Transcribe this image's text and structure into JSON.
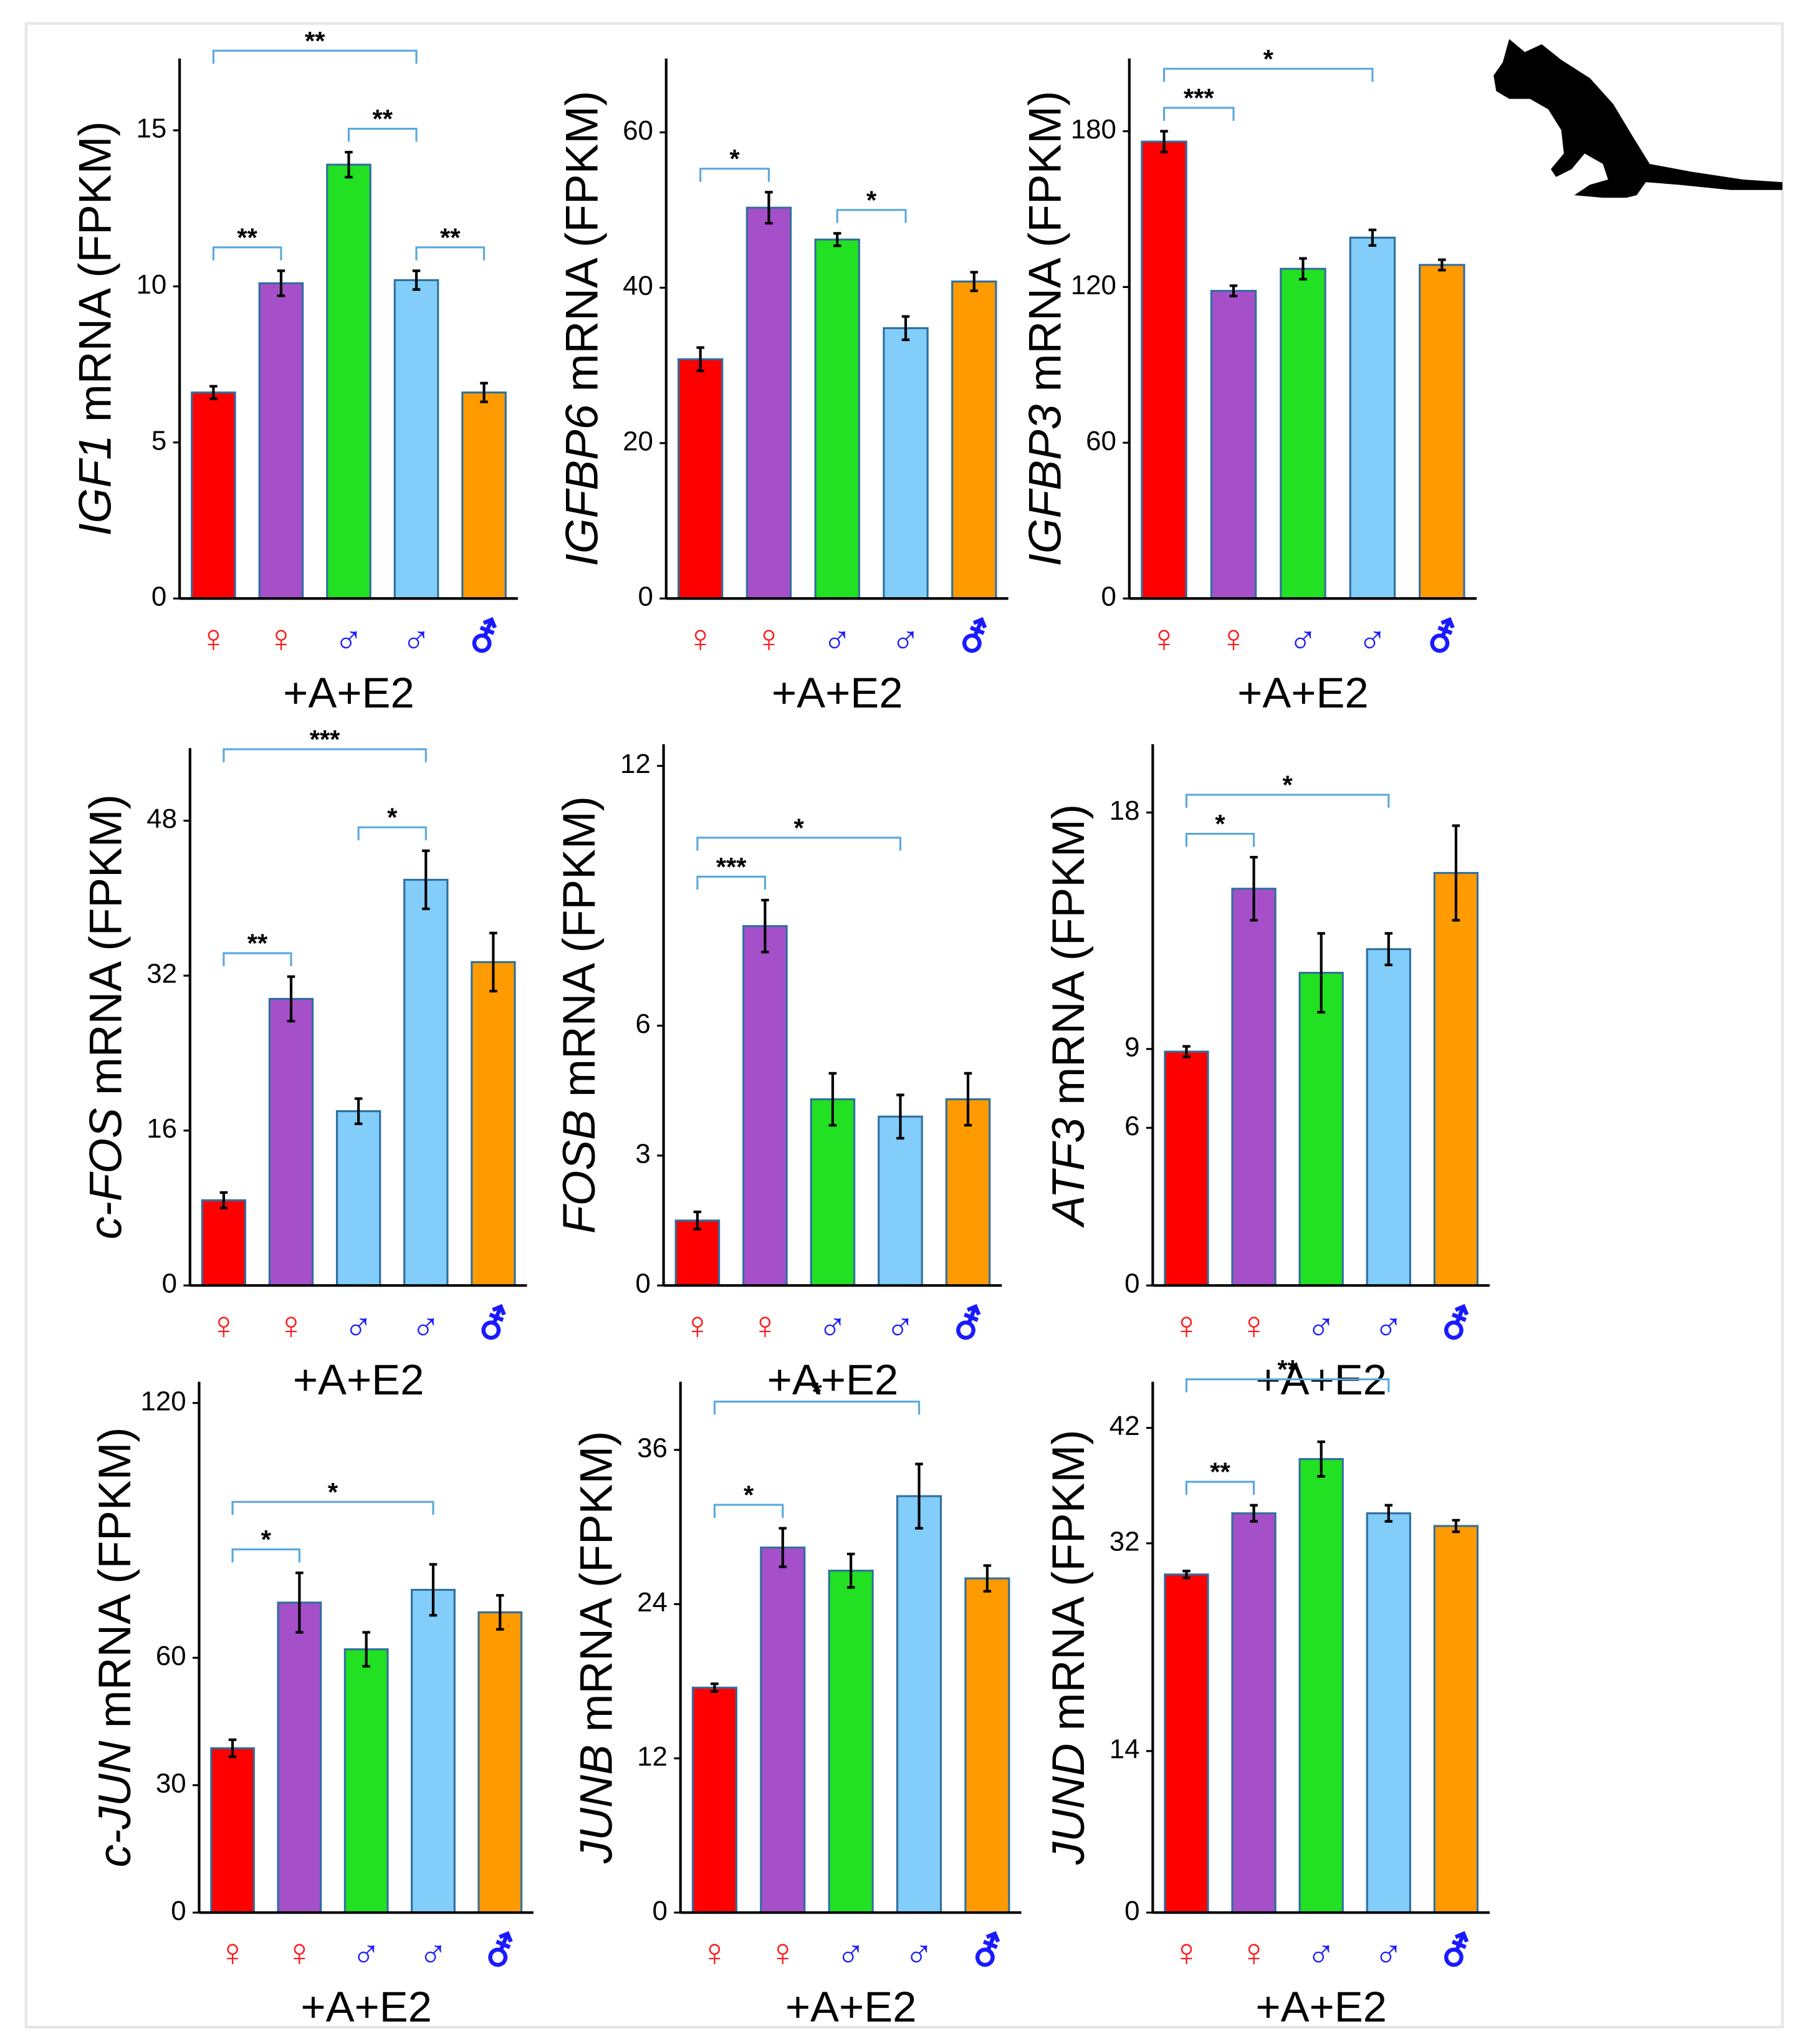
{
  "chart_data": [
    {
      "type": "bar",
      "ylabel_italic": "IGF1",
      "ylabel": "mRNA (FPKM)",
      "xlabel": "+A+E2",
      "categories": [
        "♀",
        "♀",
        "♂",
        "♂",
        "⚦"
      ],
      "category_colors": [
        "#ff1a1a",
        "#ff1a1a",
        "#1a1aff",
        "#1a1aff",
        "#1a1aff"
      ],
      "values": [
        6.6,
        10.1,
        13.9,
        10.2,
        6.6
      ],
      "errors": [
        0.2,
        0.4,
        0.4,
        0.3,
        0.3
      ],
      "colors": [
        "#ff0000",
        "#a550c8",
        "#22e022",
        "#82cdfa",
        "#ff9a00"
      ],
      "ylim": [
        0,
        17.3
      ],
      "yticks": [
        0,
        5,
        10,
        15
      ],
      "annotations": [
        {
          "bars": [
            0,
            1
          ],
          "text": "**"
        },
        {
          "bars": [
            0,
            3
          ],
          "text": "**"
        },
        {
          "bars": [
            2,
            3
          ],
          "text": "**"
        },
        {
          "bars": [
            3,
            4
          ],
          "text": "**"
        }
      ]
    },
    {
      "type": "bar",
      "ylabel_italic": "IGFBP6",
      "ylabel": "mRNA (FPKM)",
      "xlabel": "+A+E2",
      "categories": [
        "♀",
        "♀",
        "♂",
        "♂",
        "⚦"
      ],
      "category_colors": [
        "#ff1a1a",
        "#ff1a1a",
        "#1a1aff",
        "#1a1aff",
        "#1a1aff"
      ],
      "values": [
        30.8,
        50.3,
        46.2,
        34.8,
        40.8
      ],
      "errors": [
        1.5,
        2,
        0.8,
        1.5,
        1.2
      ],
      "colors": [
        "#ff0000",
        "#a550c8",
        "#22e022",
        "#82cdfa",
        "#ff9a00"
      ],
      "ylim": [
        0,
        69.5
      ],
      "yticks": [
        0,
        20,
        40,
        60
      ],
      "annotations": [
        {
          "bars": [
            0,
            1
          ],
          "text": "*"
        },
        {
          "bars": [
            2,
            3
          ],
          "text": "*"
        }
      ]
    },
    {
      "type": "bar",
      "ylabel_italic": "IGFBP3",
      "ylabel": "mRNA (FPKM)",
      "xlabel": "+A+E2",
      "categories": [
        "♀",
        "♀",
        "♂",
        "♂",
        "⚦"
      ],
      "category_colors": [
        "#ff1a1a",
        "#ff1a1a",
        "#1a1aff",
        "#1a1aff",
        "#1a1aff"
      ],
      "values": [
        176,
        118.5,
        127,
        139,
        128.5
      ],
      "errors": [
        4,
        2,
        4,
        3,
        2
      ],
      "colors": [
        "#ff0000",
        "#a550c8",
        "#22e022",
        "#82cdfa",
        "#ff9a00"
      ],
      "ylim": [
        0,
        208
      ],
      "yticks": [
        0,
        60,
        120,
        180
      ],
      "annotations": [
        {
          "bars": [
            0,
            1
          ],
          "text": "***"
        },
        {
          "bars": [
            0,
            3
          ],
          "text": "*"
        }
      ]
    },
    {
      "type": "bar",
      "ylabel_italic": "c-FOS",
      "ylabel": "mRNA (FPKM)",
      "xlabel": "+A+E2",
      "categories": [
        "♀",
        "♀",
        "♂",
        "♂",
        "⚦"
      ],
      "category_colors": [
        "#ff1a1a",
        "#ff1a1a",
        "#1a1aff",
        "#1a1aff",
        "#1a1aff"
      ],
      "values": [
        8.8,
        29.6,
        18,
        41.9,
        33.4
      ],
      "errors": [
        0.8,
        2.3,
        1.3,
        3,
        3
      ],
      "colors": [
        "#ff0000",
        "#a550c8",
        "#82cdfa",
        "#82cdfa",
        "#ff9a00"
      ],
      "ylim": [
        0,
        55.5
      ],
      "yticks": [
        0,
        16,
        32,
        48
      ],
      "annotations": [
        {
          "bars": [
            0,
            1
          ],
          "text": "**"
        },
        {
          "bars": [
            0,
            3
          ],
          "text": "***"
        },
        {
          "bars": [
            2,
            3
          ],
          "text": "*"
        }
      ]
    },
    {
      "type": "bar",
      "ylabel_italic": "FOSB",
      "ylabel": "mRNA (FPKM)",
      "xlabel": "+A+E2",
      "categories": [
        "♀",
        "♀",
        "♂",
        "♂",
        "⚦"
      ],
      "category_colors": [
        "#ff1a1a",
        "#ff1a1a",
        "#1a1aff",
        "#1a1aff",
        "#1a1aff"
      ],
      "values": [
        1.5,
        8.3,
        4.3,
        3.9,
        4.3
      ],
      "errors": [
        0.2,
        0.6,
        0.6,
        0.5,
        0.6
      ],
      "colors": [
        "#ff0000",
        "#a550c8",
        "#22e022",
        "#82cdfa",
        "#ff9a00"
      ],
      "ylim": [
        0,
        12.5
      ],
      "yticks": [
        0,
        3,
        6,
        12
      ],
      "annotations": [
        {
          "bars": [
            0,
            1
          ],
          "text": "***"
        },
        {
          "bars": [
            0,
            3
          ],
          "text": "*"
        }
      ]
    },
    {
      "type": "bar",
      "ylabel_italic": "ATF3",
      "ylabel": "mRNA (FPKM)",
      "xlabel": "+A+E2",
      "categories": [
        "♀",
        "♀",
        "♂",
        "♂",
        "⚦"
      ],
      "category_colors": [
        "#ff1a1a",
        "#ff1a1a",
        "#1a1aff",
        "#1a1aff",
        "#1a1aff"
      ],
      "values": [
        8.9,
        15.1,
        11.9,
        12.8,
        15.7
      ],
      "errors": [
        0.2,
        1.2,
        1.5,
        0.6,
        1.8
      ],
      "colors": [
        "#ff0000",
        "#a550c8",
        "#22e022",
        "#82cdfa",
        "#ff9a00"
      ],
      "ylim": [
        0,
        20.6
      ],
      "yticks": [
        0,
        6,
        9,
        18
      ],
      "annotations": [
        {
          "bars": [
            0,
            1
          ],
          "text": "*"
        },
        {
          "bars": [
            0,
            3
          ],
          "text": "*"
        }
      ]
    },
    {
      "type": "bar",
      "ylabel_italic": "c-JUN",
      "ylabel": "mRNA (FPKM)",
      "xlabel": "+A+E2",
      "categories": [
        "♀",
        "♀",
        "♂",
        "♂",
        "⚦"
      ],
      "category_colors": [
        "#ff1a1a",
        "#ff1a1a",
        "#1a1aff",
        "#1a1aff",
        "#1a1aff"
      ],
      "values": [
        38.7,
        73,
        62,
        76,
        70.7
      ],
      "errors": [
        2,
        7,
        4,
        6,
        4
      ],
      "colors": [
        "#ff0000",
        "#a550c8",
        "#22e022",
        "#82cdfa",
        "#ff9a00"
      ],
      "ylim": [
        0,
        125
      ],
      "yticks": [
        0,
        30,
        60,
        120
      ],
      "annotations": [
        {
          "bars": [
            0,
            1
          ],
          "text": "*"
        },
        {
          "bars": [
            0,
            3
          ],
          "text": "*"
        }
      ]
    },
    {
      "type": "bar",
      "ylabel_italic": "JUNB",
      "ylabel": "mRNA (FPKM)",
      "xlabel": "+A+E2",
      "categories": [
        "♀",
        "♀",
        "♂",
        "♂",
        "⚦"
      ],
      "category_colors": [
        "#ff1a1a",
        "#ff1a1a",
        "#1a1aff",
        "#1a1aff",
        "#1a1aff"
      ],
      "values": [
        17.5,
        28.4,
        26.6,
        32.4,
        26
      ],
      "errors": [
        0.3,
        1.5,
        1.3,
        2.5,
        1
      ],
      "colors": [
        "#ff0000",
        "#a550c8",
        "#22e022",
        "#82cdfa",
        "#ff9a00"
      ],
      "ylim": [
        0,
        41.3
      ],
      "yticks": [
        0,
        12,
        24,
        36
      ],
      "annotations": [
        {
          "bars": [
            0,
            1
          ],
          "text": "*"
        },
        {
          "bars": [
            0,
            3
          ],
          "text": "*"
        }
      ]
    },
    {
      "type": "bar",
      "ylabel_italic": "JUND",
      "ylabel": "mRNA (FPKM)",
      "xlabel": "+A+E2",
      "categories": [
        "♀",
        "♀",
        "♂",
        "♂",
        "⚦"
      ],
      "category_colors": [
        "#ff1a1a",
        "#ff1a1a",
        "#1a1aff",
        "#1a1aff",
        "#1a1aff"
      ],
      "values": [
        29.3,
        34.6,
        39.3,
        34.6,
        33.5
      ],
      "errors": [
        0.3,
        0.7,
        1.5,
        0.7,
        0.5
      ],
      "colors": [
        "#ff0000",
        "#a550c8",
        "#22e022",
        "#82cdfa",
        "#ff9a00"
      ],
      "ylim": [
        0,
        46
      ],
      "yticks": [
        0,
        14,
        32,
        42
      ],
      "annotations": [
        {
          "bars": [
            0,
            1
          ],
          "text": "**"
        },
        {
          "bars": [
            0,
            3
          ],
          "text": "**"
        }
      ]
    }
  ]
}
